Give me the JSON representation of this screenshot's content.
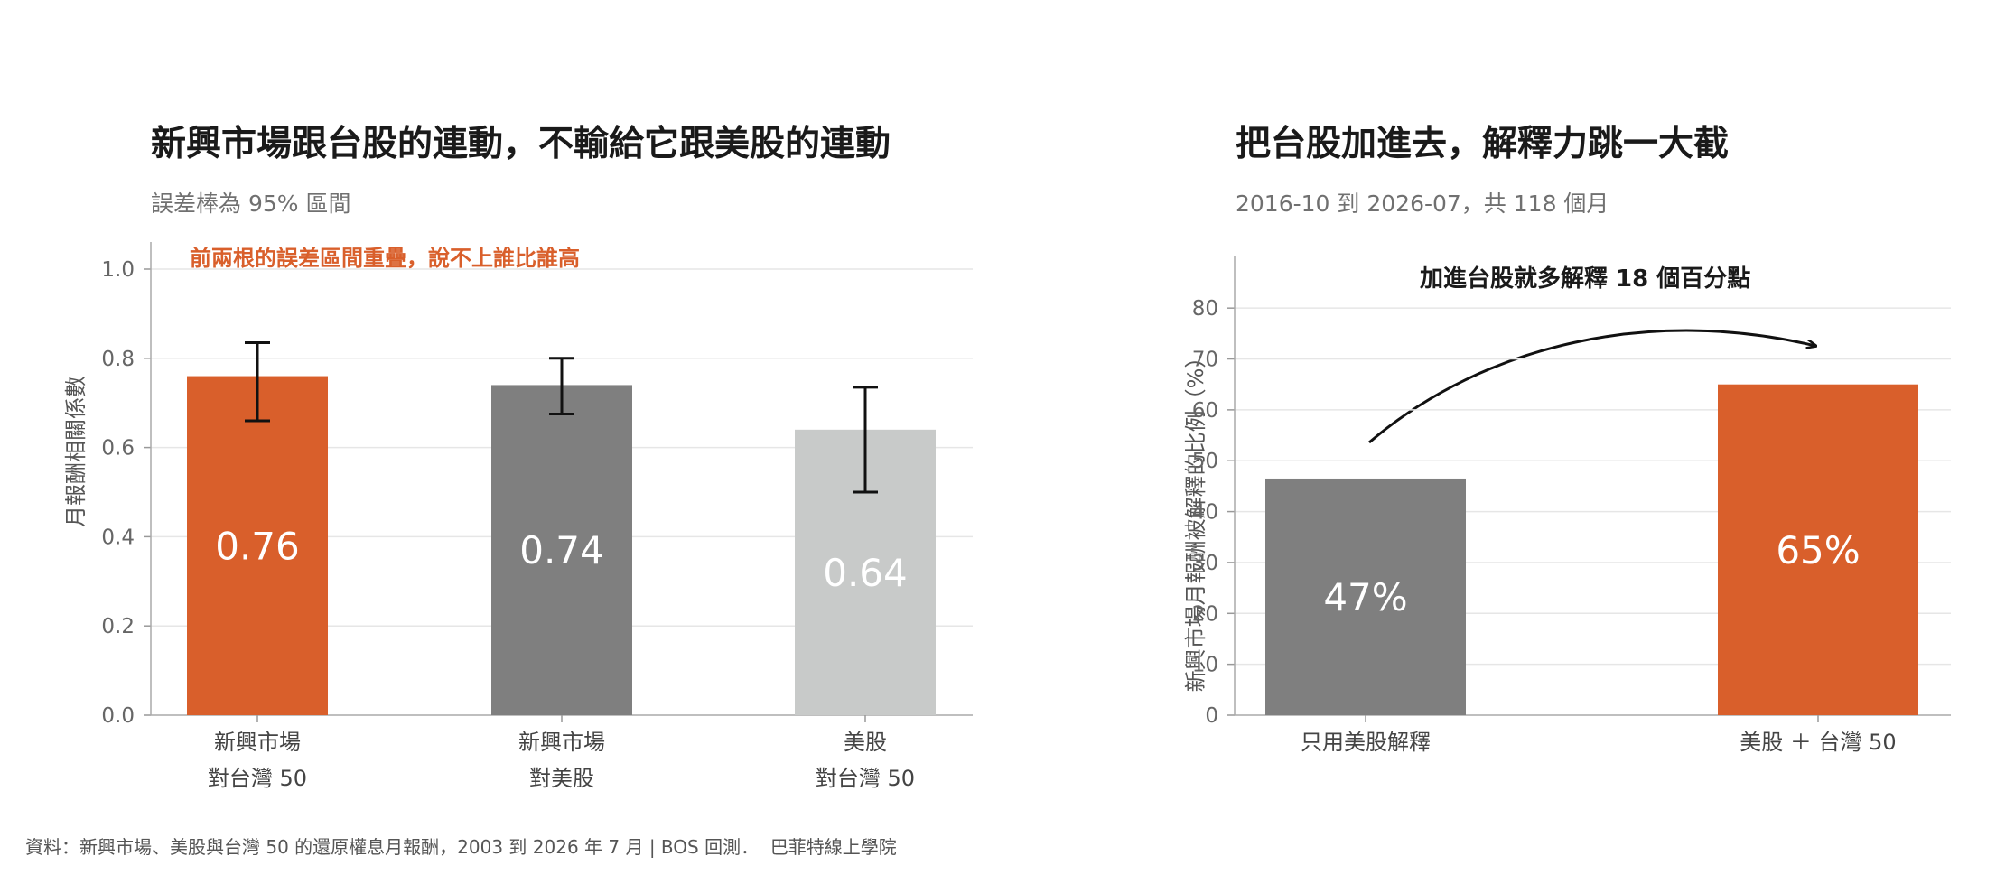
{
  "charts": {
    "left": {
      "title": "新興市場跟台股的連動，不輸給它跟美股的連動",
      "subtitle": "誤差棒為 95% 區間",
      "annotation": "前兩根的誤差區間重疊，說不上誰比誰高",
      "ylabel": "月報酬相關係數"
    },
    "right": {
      "title": "把台股加進去，解釋力跳一大截",
      "subtitle": "2016-10 到 2026-07，共 118 個月",
      "annotation": "加進台股就多解釋 18 個百分點",
      "ylabel": "新興市場月報酬被解釋的比例（%）"
    }
  },
  "footer": {
    "source": "資料：新興市場、美股與台灣 50 的還原權息月報酬，2003 到 2026 年 7 月 | BOS 回測．",
    "brand": "巴菲特線上學院"
  },
  "chart_data": [
    {
      "type": "bar",
      "title": "新興市場跟台股的連動，不輸給它跟美股的連動",
      "subtitle": "誤差棒為 95% 區間",
      "xlabel": "",
      "ylabel": "月報酬相關係數",
      "ylim": [
        0,
        1.0
      ],
      "yticks": [
        "0.0",
        "0.2",
        "0.4",
        "0.6",
        "0.8",
        "1.0"
      ],
      "grid": true,
      "categories": [
        [
          "新興市場",
          "對台灣 50"
        ],
        [
          "新興市場",
          "對美股"
        ],
        [
          "美股",
          "對台灣 50"
        ]
      ],
      "values": [
        0.76,
        0.74,
        0.64
      ],
      "value_labels": [
        "0.76",
        "0.74",
        "0.64"
      ],
      "error_low": [
        0.66,
        0.675,
        0.5
      ],
      "error_high": [
        0.835,
        0.8,
        0.735
      ],
      "colors": [
        "#d95f2b",
        "#7f7f7f",
        "#c8cac9"
      ]
    },
    {
      "type": "bar",
      "title": "把台股加進去，解釋力跳一大截",
      "subtitle": "2016-10 到 2026-07，共 118 個月",
      "xlabel": "",
      "ylabel": "新興市場月報酬被解釋的比例（%）",
      "ylim": [
        0,
        85
      ],
      "yticks": [
        "0",
        "10",
        "20",
        "30",
        "40",
        "50",
        "60",
        "70",
        "80"
      ],
      "grid": true,
      "categories": [
        [
          "只用美股解釋"
        ],
        [
          "美股 ＋ 台灣 50"
        ]
      ],
      "values": [
        46.5,
        65
      ],
      "value_labels": [
        "47%",
        "65%"
      ],
      "colors": [
        "#7f7f7f",
        "#d95f2b"
      ]
    }
  ]
}
